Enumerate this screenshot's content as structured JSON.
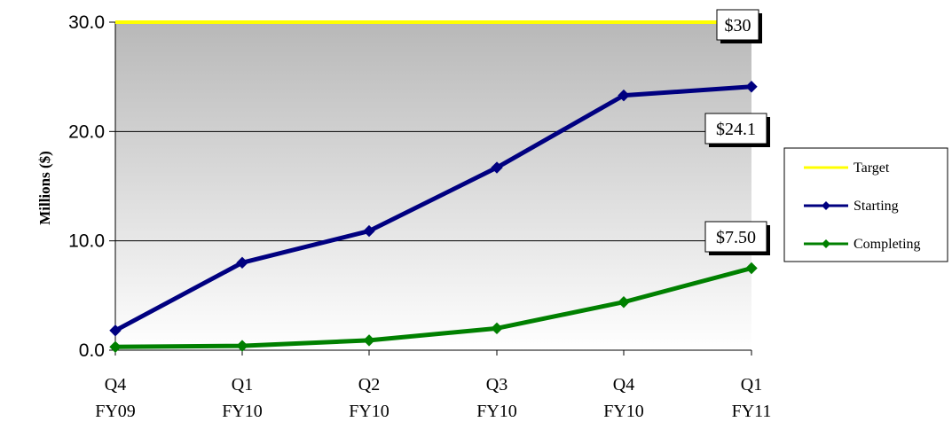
{
  "chart_data": {
    "type": "line",
    "title": "",
    "xlabel": "",
    "ylabel": "Millions ($)",
    "ylim": [
      0,
      30
    ],
    "y_ticks": [
      "0.0",
      "10.0",
      "20.0",
      "30.0"
    ],
    "y_tick_values": [
      0,
      10,
      20,
      30
    ],
    "categories": [
      [
        "Q4",
        "FY09"
      ],
      [
        "Q1",
        "FY10"
      ],
      [
        "Q2",
        "FY10"
      ],
      [
        "Q3",
        "FY10"
      ],
      [
        "Q4",
        "FY10"
      ],
      [
        "Q1",
        "FY11"
      ]
    ],
    "grid": "horizontal",
    "background": "gradient gray to white",
    "legend_position": "right",
    "series": [
      {
        "name": "Target",
        "color": "#FFFF00",
        "marker": "none",
        "values": [
          30,
          30,
          30,
          30,
          30,
          30
        ]
      },
      {
        "name": "Starting",
        "color": "#000080",
        "marker": "diamond",
        "values": [
          1.8,
          8.0,
          10.9,
          16.7,
          23.3,
          24.1
        ]
      },
      {
        "name": "Completing",
        "color": "#008000",
        "marker": "diamond",
        "values": [
          0.3,
          0.4,
          0.9,
          2.0,
          4.4,
          7.5
        ]
      }
    ],
    "annotations": [
      {
        "text": "$30",
        "series": "Target"
      },
      {
        "text": "$24.1",
        "series": "Starting"
      },
      {
        "text": "$7.50",
        "series": "Completing"
      }
    ]
  }
}
